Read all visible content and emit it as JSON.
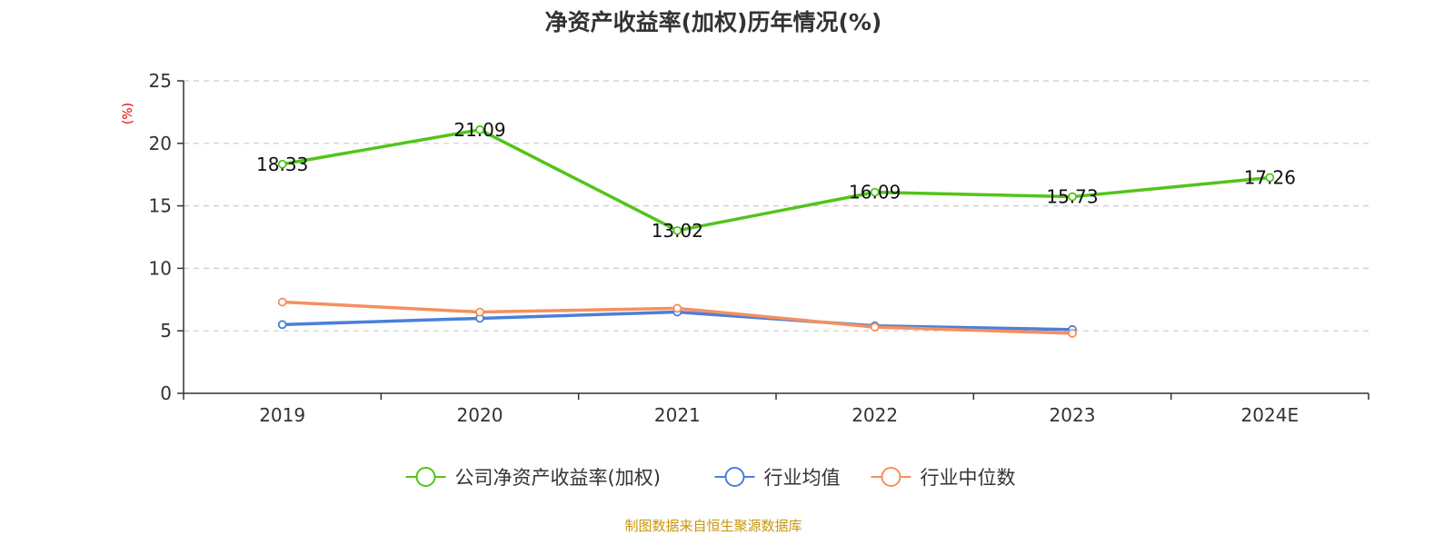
{
  "chart_data": {
    "type": "line",
    "title": "净资产收益率(加权)历年情况(%)",
    "ylabel": "(%)",
    "xlabel": "",
    "categories": [
      "2019",
      "2020",
      "2021",
      "2022",
      "2023",
      "2024E"
    ],
    "ylim": [
      0,
      25
    ],
    "yticks": [
      0,
      5,
      10,
      15,
      20,
      25
    ],
    "grid": true,
    "legend_position": "bottom",
    "series": [
      {
        "name": "公司净资产收益率(加权)",
        "color": "#52c41a",
        "values": [
          18.33,
          21.09,
          13.02,
          16.09,
          15.73,
          17.26
        ],
        "labels": [
          "18.33",
          "21.09",
          "13.02",
          "16.09",
          "15.73",
          "17.26"
        ]
      },
      {
        "name": "行业均值",
        "color": "#4a7fdb",
        "values": [
          5.5,
          6.0,
          6.5,
          5.4,
          5.1,
          null
        ]
      },
      {
        "name": "行业中位数",
        "color": "#f5905e",
        "values": [
          7.3,
          6.5,
          6.8,
          5.3,
          4.8,
          null
        ]
      }
    ],
    "source": "制图数据来自恒生聚源数据库",
    "ylabel_color": "#e8000b",
    "source_color": "#c8960a"
  }
}
